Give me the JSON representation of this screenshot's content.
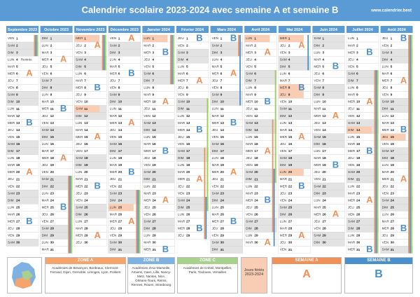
{
  "header": {
    "title": "Calendrier scolaire 2023-2024 avec semaine A et semaine B",
    "site": "www.calendrier.best"
  },
  "weekend": [
    "SAM",
    "DIM"
  ],
  "zone_colors": {
    "A": "#f0915a",
    "B": "#4b8fcb",
    "C": "#9ccc5a"
  },
  "months": [
    {
      "name": "Septembre 2023",
      "wd": [
        "VEN",
        "SAM",
        "DIM",
        "LUN",
        "MAR",
        "MER",
        "JEU",
        "VEN",
        "SAM",
        "DIM",
        "LUN",
        "MAR",
        "MER",
        "JEU",
        "VEN",
        "SAM",
        "DIM",
        "LUN",
        "MAR",
        "MER",
        "JEU",
        "VEN",
        "SAM",
        "DIM",
        "LUN",
        "MAR",
        "MER",
        "JEU",
        "VEN",
        "SAM"
      ],
      "d": [
        1,
        2,
        3,
        4,
        5,
        6,
        7,
        8,
        9,
        10,
        11,
        12,
        13,
        14,
        15,
        16,
        17,
        18,
        19,
        20,
        21,
        22,
        23,
        24,
        25,
        26,
        27,
        28,
        29,
        30
      ],
      "weeks": [
        [
          6,
          "A"
        ],
        [
          13,
          "B"
        ],
        [
          20,
          "A"
        ],
        [
          27,
          "B"
        ]
      ],
      "notes": [
        [
          4,
          "Rentrée"
        ]
      ],
      "vac": [
        [
          "A",
          1,
          3
        ],
        [
          "B",
          1,
          3
        ],
        [
          "C",
          1,
          3
        ]
      ]
    },
    {
      "name": "Octobre 2023",
      "wd": [
        "DIM",
        "LUN",
        "MAR",
        "MER",
        "JEU",
        "VEN",
        "SAM",
        "DIM",
        "LUN",
        "MAR",
        "MER",
        "JEU",
        "VEN",
        "SAM",
        "DIM",
        "LUN",
        "MAR",
        "MER",
        "JEU",
        "VEN",
        "SAM",
        "DIM",
        "LUN",
        "MAR",
        "MER",
        "JEU",
        "VEN",
        "SAM",
        "DIM",
        "LUN",
        "MAR"
      ],
      "d": [
        1,
        2,
        3,
        4,
        5,
        6,
        7,
        8,
        9,
        10,
        11,
        12,
        13,
        14,
        15,
        16,
        17,
        18,
        19,
        20,
        21,
        22,
        23,
        24,
        25,
        26,
        27,
        28,
        29,
        30,
        31
      ],
      "weeks": [
        [
          4,
          "A"
        ],
        [
          11,
          "B"
        ],
        [
          18,
          "A"
        ],
        [
          25,
          "B"
        ]
      ],
      "vac": [
        [
          "A",
          21,
          31
        ],
        [
          "B",
          21,
          31
        ],
        [
          "C",
          21,
          31
        ]
      ]
    },
    {
      "name": "Novembre 2023",
      "wd": [
        "MER",
        "JEU",
        "VEN",
        "SAM",
        "DIM",
        "LUN",
        "MAR",
        "MER",
        "JEU",
        "VEN",
        "SAM",
        "DIM",
        "LUN",
        "MAR",
        "MER",
        "JEU",
        "VEN",
        "SAM",
        "DIM",
        "LUN",
        "MAR",
        "MER",
        "JEU",
        "VEN",
        "SAM",
        "DIM",
        "LUN",
        "MAR",
        "MER",
        "JEU"
      ],
      "d": [
        1,
        2,
        3,
        4,
        5,
        6,
        7,
        8,
        9,
        10,
        11,
        12,
        13,
        14,
        15,
        16,
        17,
        18,
        19,
        20,
        21,
        22,
        23,
        24,
        25,
        26,
        27,
        28,
        29,
        30
      ],
      "weeks": [
        [
          2,
          "A"
        ],
        [
          8,
          "B"
        ],
        [
          15,
          "A"
        ],
        [
          22,
          "B"
        ],
        [
          29,
          "A"
        ]
      ],
      "holidays": [
        1,
        11
      ],
      "vac": [
        [
          "A",
          1,
          5
        ],
        [
          "B",
          1,
          5
        ],
        [
          "C",
          1,
          5
        ]
      ]
    },
    {
      "name": "Décembre 2023",
      "wd": [
        "VEN",
        "SAM",
        "DIM",
        "LUN",
        "MAR",
        "MER",
        "JEU",
        "VEN",
        "SAM",
        "DIM",
        "LUN",
        "MAR",
        "MER",
        "JEU",
        "VEN",
        "SAM",
        "DIM",
        "LUN",
        "MAR",
        "MER",
        "JEU",
        "VEN",
        "SAM",
        "DIM",
        "LUN",
        "MAR",
        "MER",
        "JEU",
        "VEN",
        "SAM",
        "DIM"
      ],
      "d": [
        1,
        2,
        3,
        4,
        5,
        6,
        7,
        8,
        9,
        10,
        11,
        12,
        13,
        14,
        15,
        16,
        17,
        18,
        19,
        20,
        21,
        22,
        23,
        24,
        25,
        26,
        27,
        28,
        29,
        30,
        31
      ],
      "weeks": [
        [
          1,
          "A"
        ],
        [
          6,
          "B"
        ],
        [
          13,
          "A"
        ],
        [
          20,
          "B"
        ],
        [
          27,
          "A"
        ]
      ],
      "holidays": [
        25
      ],
      "vac": [
        [
          "A",
          23,
          31
        ],
        [
          "B",
          23,
          31
        ],
        [
          "C",
          23,
          31
        ]
      ]
    },
    {
      "name": "Janvier 2024",
      "wd": [
        "LUN",
        "MAR",
        "MER",
        "JEU",
        "VEN",
        "SAM",
        "DIM",
        "LUN",
        "MAR",
        "MER",
        "JEU",
        "VEN",
        "SAM",
        "DIM",
        "LUN",
        "MAR",
        "MER",
        "JEU",
        "VEN",
        "SAM",
        "DIM",
        "LUN",
        "MAR",
        "MER",
        "JEU",
        "VEN",
        "SAM",
        "DIM",
        "LUN",
        "MAR",
        "MER"
      ],
      "d": [
        1,
        2,
        3,
        4,
        5,
        6,
        7,
        8,
        9,
        10,
        11,
        12,
        13,
        14,
        15,
        16,
        17,
        18,
        19,
        20,
        21,
        22,
        23,
        24,
        25,
        26,
        27,
        28,
        29,
        30,
        31
      ],
      "weeks": [
        [
          3,
          "B"
        ],
        [
          10,
          "A"
        ],
        [
          17,
          "B"
        ],
        [
          24,
          "A"
        ],
        [
          31,
          "B"
        ]
      ],
      "holidays": [
        1
      ],
      "vac": [
        [
          "A",
          1,
          7
        ],
        [
          "B",
          1,
          7
        ],
        [
          "C",
          1,
          7
        ]
      ]
    },
    {
      "name": "Février 2024",
      "wd": [
        "JEU",
        "VEN",
        "SAM",
        "DIM",
        "LUN",
        "MAR",
        "MER",
        "JEU",
        "VEN",
        "SAM",
        "DIM",
        "LUN",
        "MAR",
        "MER",
        "JEU",
        "VEN",
        "SAM",
        "DIM",
        "LUN",
        "MAR",
        "MER",
        "JEU",
        "VEN",
        "SAM",
        "DIM",
        "LUN",
        "MAR",
        "MER",
        "JEU"
      ],
      "d": [
        1,
        2,
        3,
        4,
        5,
        6,
        7,
        8,
        9,
        10,
        11,
        12,
        13,
        14,
        15,
        16,
        17,
        18,
        19,
        20,
        21,
        22,
        23,
        24,
        25,
        26,
        27,
        28,
        29
      ],
      "weeks": [
        [
          1,
          "B"
        ],
        [
          7,
          "A"
        ],
        [
          14,
          "B"
        ],
        [
          21,
          "A"
        ],
        [
          28,
          "B"
        ]
      ],
      "vac": [
        [
          "A",
          17,
          29
        ],
        [
          "B",
          24,
          29
        ],
        [
          "C",
          10,
          25
        ]
      ]
    },
    {
      "name": "Mars 2024",
      "wd": [
        "VEN",
        "SAM",
        "DIM",
        "LUN",
        "MAR",
        "MER",
        "JEU",
        "VEN",
        "SAM",
        "DIM",
        "LUN",
        "MAR",
        "MER",
        "JEU",
        "VEN",
        "SAM",
        "DIM",
        "LUN",
        "MAR",
        "MER",
        "JEU",
        "VEN",
        "SAM",
        "DIM",
        "LUN",
        "MAR",
        "MER",
        "JEU",
        "VEN",
        "SAM",
        "DIM"
      ],
      "d": [
        1,
        2,
        3,
        4,
        5,
        6,
        7,
        8,
        9,
        10,
        11,
        12,
        13,
        14,
        15,
        16,
        17,
        18,
        19,
        20,
        21,
        22,
        23,
        24,
        25,
        26,
        27,
        28,
        29,
        30,
        31
      ],
      "weeks": [
        [
          1,
          "B"
        ],
        [
          6,
          "A"
        ],
        [
          13,
          "B"
        ],
        [
          20,
          "A"
        ],
        [
          27,
          "B"
        ]
      ],
      "vac": [
        [
          "A",
          1,
          3
        ],
        [
          "B",
          1,
          10
        ]
      ]
    },
    {
      "name": "Avril 2024",
      "wd": [
        "LUN",
        "MAR",
        "MER",
        "JEU",
        "VEN",
        "SAM",
        "DIM",
        "LUN",
        "MAR",
        "MER",
        "JEU",
        "VEN",
        "SAM",
        "DIM",
        "LUN",
        "MAR",
        "MER",
        "JEU",
        "VEN",
        "SAM",
        "DIM",
        "LUN",
        "MAR",
        "MER",
        "JEU",
        "VEN",
        "SAM",
        "DIM",
        "LUN",
        "MAR"
      ],
      "d": [
        1,
        2,
        3,
        4,
        5,
        6,
        7,
        8,
        9,
        10,
        11,
        12,
        13,
        14,
        15,
        16,
        17,
        18,
        19,
        20,
        21,
        22,
        23,
        24,
        25,
        26,
        27,
        28,
        29,
        30
      ],
      "weeks": [
        [
          3,
          "A"
        ],
        [
          10,
          "B"
        ],
        [
          17,
          "A"
        ],
        [
          24,
          "B"
        ],
        [
          30,
          "A"
        ]
      ],
      "holidays": [
        1
      ],
      "vac": [
        [
          "A",
          13,
          28
        ],
        [
          "B",
          20,
          30
        ],
        [
          "C",
          6,
          21
        ]
      ]
    },
    {
      "name": "Mai 2024",
      "wd": [
        "MER",
        "JEU",
        "VEN",
        "SAM",
        "DIM",
        "LUN",
        "MAR",
        "MER",
        "JEU",
        "VEN",
        "SAM",
        "DIM",
        "LUN",
        "MAR",
        "MER",
        "JEU",
        "VEN",
        "SAM",
        "DIM",
        "LUN",
        "MAR",
        "MER",
        "JEU",
        "VEN",
        "SAM",
        "DIM",
        "LUN",
        "MAR",
        "MER",
        "JEU",
        "VEN"
      ],
      "d": [
        1,
        2,
        3,
        4,
        5,
        6,
        7,
        8,
        9,
        10,
        11,
        12,
        13,
        14,
        15,
        16,
        17,
        18,
        19,
        20,
        21,
        22,
        23,
        24,
        25,
        26,
        27,
        28,
        29,
        30,
        31
      ],
      "weeks": [
        [
          2,
          "A"
        ],
        [
          8,
          "B"
        ],
        [
          15,
          "A"
        ],
        [
          22,
          "B"
        ],
        [
          29,
          "A"
        ]
      ],
      "holidays": [
        1,
        8,
        9,
        20
      ],
      "vac": [
        [
          "B",
          1,
          5
        ]
      ]
    },
    {
      "name": "Juin 2024",
      "wd": [
        "SAM",
        "DIM",
        "LUN",
        "MAR",
        "MER",
        "JEU",
        "VEN",
        "SAM",
        "DIM",
        "LUN",
        "MAR",
        "MER",
        "JEU",
        "VEN",
        "SAM",
        "DIM",
        "LUN",
        "MAR",
        "MER",
        "JEU",
        "VEN",
        "SAM",
        "DIM",
        "LUN",
        "MAR",
        "MER",
        "JEU",
        "VEN",
        "SAM",
        "DIM"
      ],
      "d": [
        1,
        2,
        3,
        4,
        5,
        6,
        7,
        8,
        9,
        10,
        11,
        12,
        13,
        14,
        15,
        16,
        17,
        18,
        19,
        20,
        21,
        22,
        23,
        24,
        25,
        26,
        27,
        28,
        29,
        30
      ],
      "weeks": [
        [
          5,
          "B"
        ],
        [
          12,
          "A"
        ],
        [
          19,
          "B"
        ],
        [
          26,
          "A"
        ]
      ]
    },
    {
      "name": "Juillet 2024",
      "wd": [
        "LUN",
        "MAR",
        "MER",
        "JEU",
        "VEN",
        "SAM",
        "DIM",
        "LUN",
        "MAR",
        "MER",
        "JEU",
        "VEN",
        "SAM",
        "DIM",
        "LUN",
        "MAR",
        "MER",
        "JEU",
        "VEN",
        "SAM",
        "DIM",
        "LUN",
        "MAR",
        "MER",
        "JEU",
        "VEN",
        "SAM",
        "DIM",
        "LUN",
        "MAR",
        "MER"
      ],
      "d": [
        1,
        2,
        3,
        4,
        5,
        6,
        7,
        8,
        9,
        10,
        11,
        12,
        13,
        14,
        15,
        16,
        17,
        18,
        19,
        20,
        21,
        22,
        23,
        24,
        25,
        26,
        27,
        28,
        29,
        30,
        31
      ],
      "weeks": [
        [
          3,
          "B"
        ],
        [
          10,
          "A"
        ],
        [
          17,
          "B"
        ],
        [
          24,
          "A"
        ],
        [
          31,
          "B"
        ]
      ],
      "holidays": [
        14
      ],
      "vac": [
        [
          "A",
          6,
          31
        ],
        [
          "B",
          6,
          31
        ],
        [
          "C",
          6,
          31
        ]
      ]
    },
    {
      "name": "Août 2024",
      "wd": [
        "JEU",
        "VEN",
        "SAM",
        "DIM",
        "LUN",
        "MAR",
        "MER",
        "JEU",
        "VEN",
        "SAM",
        "DIM",
        "LUN",
        "MAR",
        "MER",
        "JEU",
        "VEN",
        "SAM",
        "DIM",
        "LUN",
        "MAR",
        "MER",
        "JEU",
        "VEN",
        "SAM",
        "DIM",
        "LUN",
        "MAR",
        "MER",
        "JEU",
        "VEN",
        "SAM"
      ],
      "d": [
        1,
        2,
        3,
        4,
        5,
        6,
        7,
        8,
        9,
        10,
        11,
        12,
        13,
        14,
        15,
        16,
        17,
        18,
        19,
        20,
        21,
        22,
        23,
        24,
        25,
        26,
        27,
        28,
        29,
        30,
        31
      ],
      "weeks": [
        [
          1,
          "B"
        ],
        [
          7,
          "A"
        ],
        [
          14,
          "B"
        ],
        [
          21,
          "A"
        ],
        [
          28,
          "B"
        ]
      ],
      "holidays": [
        15
      ],
      "vac": [
        [
          "A",
          1,
          31
        ],
        [
          "B",
          1,
          31
        ],
        [
          "C",
          1,
          31
        ]
      ]
    }
  ],
  "footer": {
    "zones": [
      {
        "name": "ZONE A",
        "color": "#f4a46c",
        "text": "Académies de Besançon, Bordeaux, Clermont-Ferrand, Dijon, Grenoble, Limoges, Lyon, Poitiers"
      },
      {
        "name": "ZONE B",
        "color": "#7fb2e0",
        "text": "Académies d'Aix-Marseille, Amiens, Caen, Lille, Nancy-Metz, Nantes, Nice, Orléans-Tours, Reims, Rennes, Rouen, Strasbourg"
      },
      {
        "name": "ZONE C",
        "color": "#a9d18e",
        "text": "Académies de Créteil, Montpellier, Paris, Toulouse, Versailles"
      }
    ],
    "holidays": {
      "label": "Jours fériés",
      "years": "2023-2024"
    },
    "weeks": [
      {
        "title": "SEMAINE A",
        "letter": "A"
      },
      {
        "title": "SEMAINE B",
        "letter": "B"
      }
    ]
  }
}
